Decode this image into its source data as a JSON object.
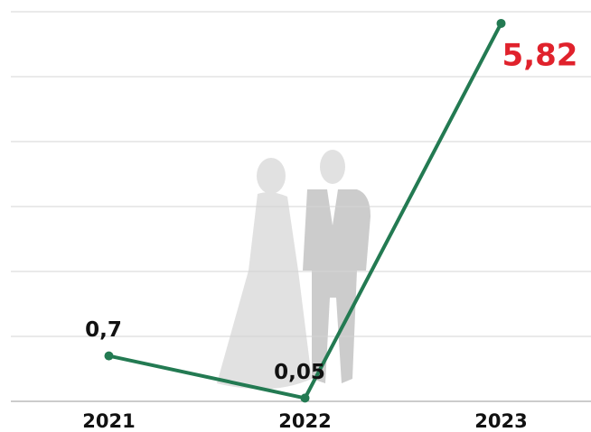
{
  "chart_data": {
    "type": "line",
    "categories": [
      "2021",
      "2022",
      "2023"
    ],
    "series": [
      {
        "color": "#237a52",
        "values": [
          0.7,
          0.05,
          5.82
        ],
        "value_labels": [
          "0,7",
          "0,05",
          "5,82"
        ]
      }
    ],
    "value_label_colors": [
      "#111111",
      "#111111",
      "#e0222c"
    ],
    "ylim": [
      0,
      6
    ],
    "yticks": [
      0,
      1,
      2,
      3,
      4,
      5,
      6
    ],
    "grid": true
  }
}
